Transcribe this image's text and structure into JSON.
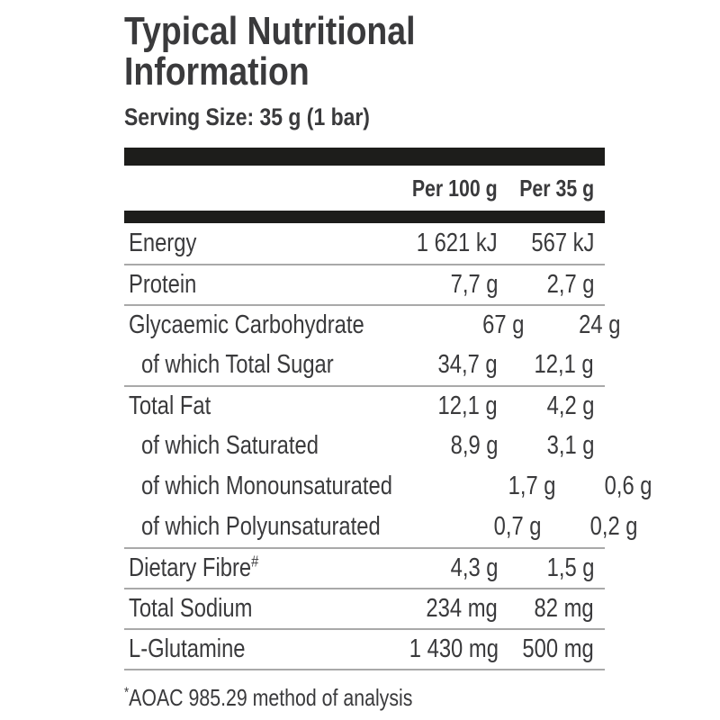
{
  "colors": {
    "text": "#3a3a3c",
    "bar": "#1d1d1b",
    "separator": "#a9a9a9",
    "background": "#ffffff"
  },
  "header": {
    "title": "Typical Nutritional Information",
    "serving_size": "Serving Size: 35 g (1 bar)"
  },
  "table": {
    "columns": [
      {
        "label": "Per 100 g"
      },
      {
        "label": "Per 35 g"
      }
    ],
    "rows": [
      {
        "label": "Energy",
        "per_100g": "1 621 kJ",
        "per_35g": "567 kJ",
        "indent": false,
        "separator_above": false
      },
      {
        "label": "Protein",
        "per_100g": "7,7 g",
        "per_35g": "2,7 g",
        "indent": false,
        "separator_above": true
      },
      {
        "label": "Glycaemic Carbohydrate",
        "per_100g": "67 g",
        "per_35g": "24 g",
        "indent": false,
        "separator_above": true
      },
      {
        "label": "of which Total Sugar",
        "per_100g": "34,7 g",
        "per_35g": "12,1 g",
        "indent": true,
        "separator_above": false
      },
      {
        "label": "Total Fat",
        "per_100g": "12,1 g",
        "per_35g": "4,2 g",
        "indent": false,
        "separator_above": true
      },
      {
        "label": "of which Saturated",
        "per_100g": "8,9 g",
        "per_35g": "3,1 g",
        "indent": true,
        "separator_above": false
      },
      {
        "label": "of which Monounsaturated",
        "per_100g": "1,7 g",
        "per_35g": "0,6 g",
        "indent": true,
        "separator_above": false
      },
      {
        "label": "of which Polyunsaturated",
        "per_100g": "0,7 g",
        "per_35g": "0,2 g",
        "indent": true,
        "separator_above": false
      },
      {
        "label": "Dietary Fibre",
        "marker": "#",
        "per_100g": "4,3 g",
        "per_35g": "1,5 g",
        "indent": false,
        "separator_above": true
      },
      {
        "label": "Total Sodium",
        "per_100g": "234 mg",
        "per_35g": "82 mg",
        "indent": false,
        "separator_above": true
      },
      {
        "label": "L-Glutamine",
        "per_100g": "1 430 mg",
        "per_35g": "500 mg",
        "indent": false,
        "separator_above": true
      }
    ]
  },
  "footnote": {
    "marker": "*",
    "text": "AOAC 985.29 method of analysis"
  }
}
